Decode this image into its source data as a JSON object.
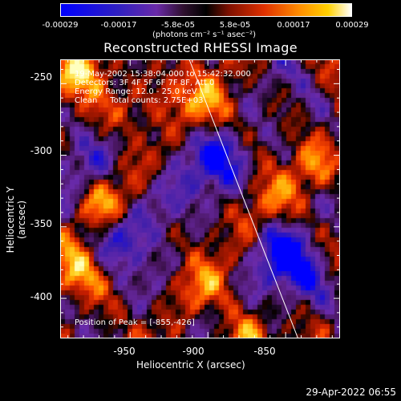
{
  "colorbar": {
    "ticks": [
      "-0.00029",
      "-0.00017",
      "-5.8e-05",
      "5.8e-05",
      "0.00017",
      "0.00029"
    ],
    "units": "(photons cm⁻² s⁻¹ asec⁻²)"
  },
  "chart_data": {
    "type": "heatmap",
    "title": "Reconstructed RHESSI Image",
    "xlabel": "Heliocentric X (arcsec)",
    "ylabel": "Heliocentric Y (arcsec)",
    "xlim": [
      -995,
      -815
    ],
    "ylim": [
      -428,
      -233
    ],
    "x_ticks": [
      -950,
      -900,
      -850
    ],
    "y_ticks": [
      -250,
      -300,
      -350,
      -400
    ],
    "x_tick_labels": [
      "-950",
      "-900",
      "-850"
    ],
    "y_tick_labels": [
      "-250",
      "-300",
      "-350",
      "-400"
    ],
    "color_scale": [
      "#0000ff",
      "#3a1a8a",
      "#6a2aa8",
      "#7a1010",
      "#c81e00",
      "#ff5000",
      "#ff8c00",
      "#ffc800",
      "#ffff9a"
    ],
    "limb_line": [
      [
        -912,
        -233
      ],
      [
        -842,
        -428
      ]
    ],
    "peak": [
      -855,
      -426
    ]
  },
  "annotations": {
    "time": "19-May-2002 15:38:04.000 to 15:42:32.000",
    "detectors": "Detectors: 3F 4F 5F 6F 7F 8F, Att 0",
    "energy": "Energy Range: 12.0 - 25.0 keV",
    "clean": "Clean     Total counts: 2.75E+03",
    "peak": "Position of Peak = [-855,-426]"
  },
  "timestamp": "29-Apr-2022 06:55"
}
